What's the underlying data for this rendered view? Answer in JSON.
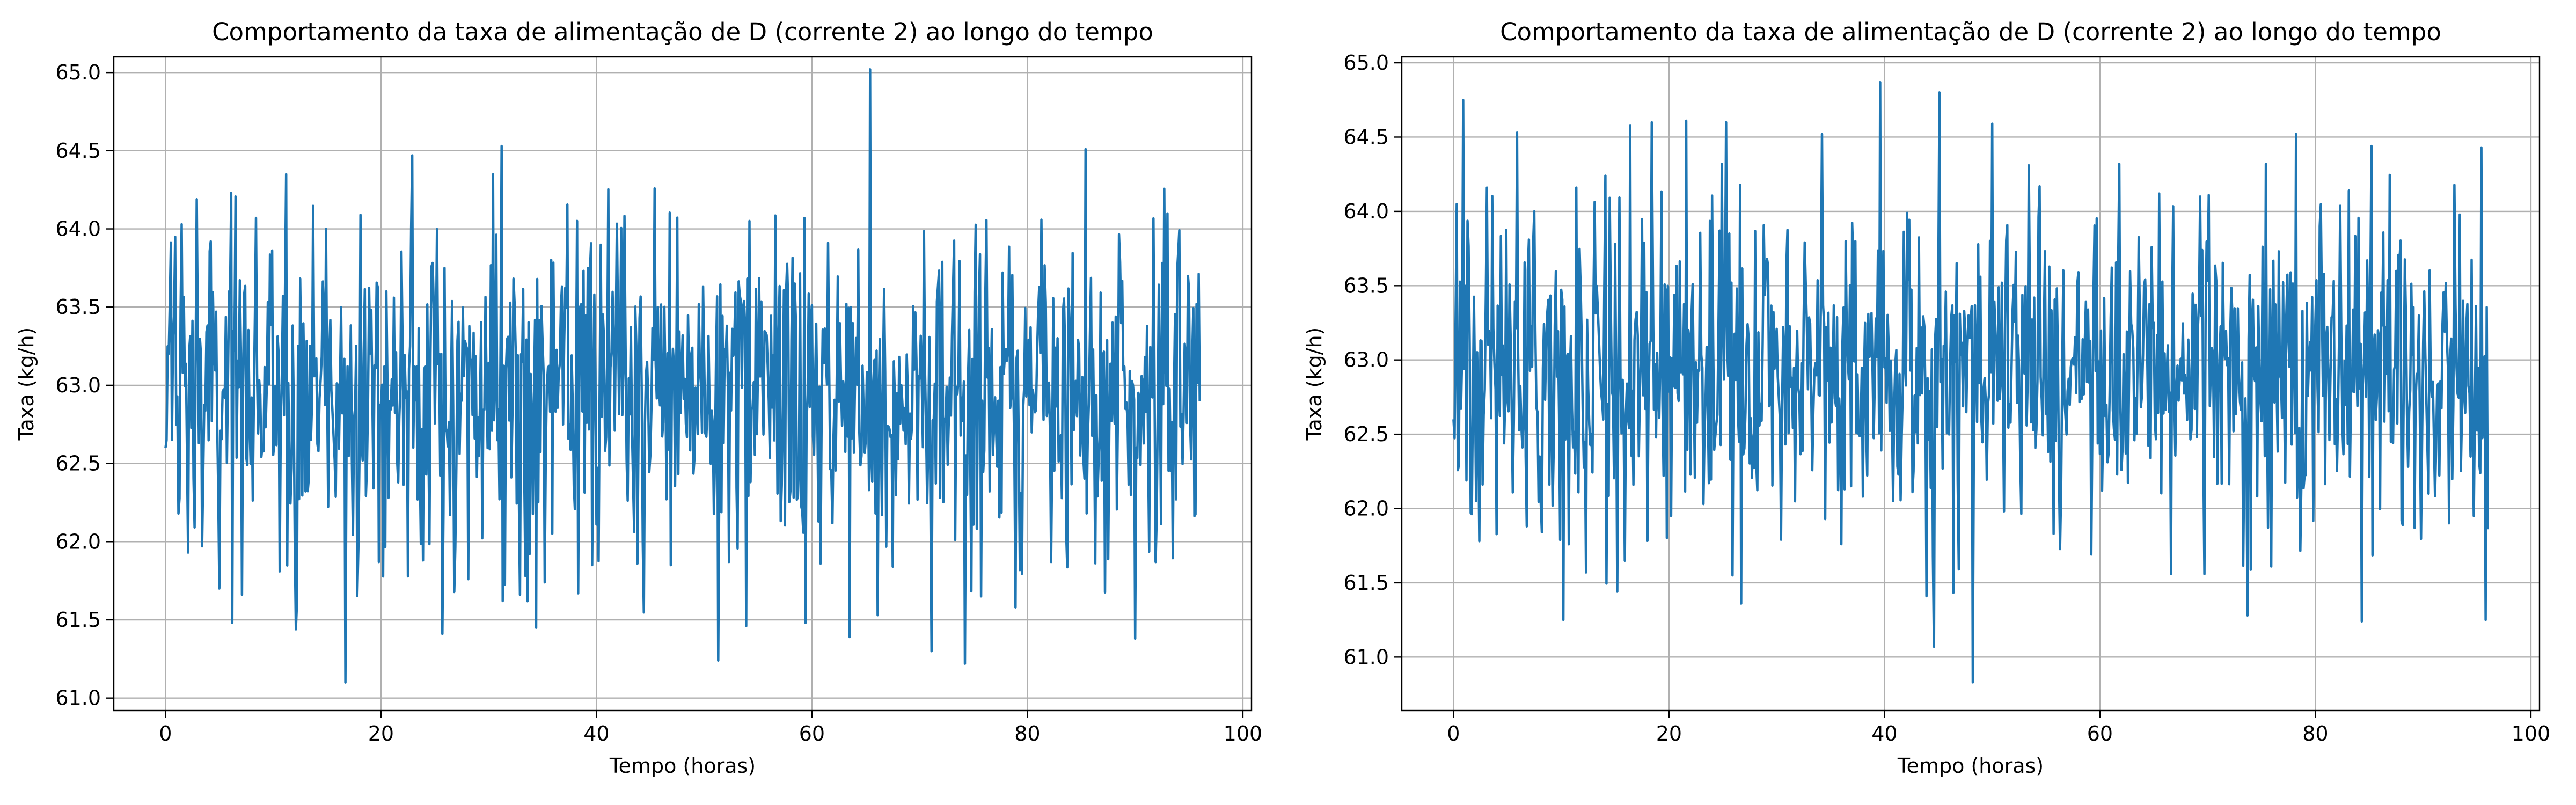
{
  "chart_data": [
    {
      "type": "line",
      "title": "Comportamento da taxa de alimentação de D (corrente 2) ao longo do tempo",
      "xlabel": "Tempo (horas)",
      "ylabel": "Taxa (kg/h)",
      "xlim": [
        -4.8,
        100.8
      ],
      "ylim": [
        60.92,
        65.1
      ],
      "xticks": [
        0,
        20,
        40,
        60,
        80,
        100
      ],
      "yticks": [
        61.0,
        61.5,
        62.0,
        62.5,
        63.0,
        63.5,
        64.0,
        64.5,
        65.0
      ],
      "grid": true,
      "color": "#1f77b4",
      "series": [
        {
          "name": "",
          "sample_step_hours": 0.1,
          "n_points": 961,
          "mean": 62.98,
          "std": 0.5,
          "min": 61.1,
          "max": 65.02,
          "points": [
            [
              0,
              62.6
            ],
            [
              0.2,
              63.25
            ],
            [
              0.4,
              63.52
            ],
            [
              0.6,
              62.65
            ],
            [
              0.9,
              63.95
            ],
            [
              1.2,
              62.18
            ],
            [
              1.5,
              64.03
            ],
            [
              2.1,
              61.93
            ],
            [
              2.9,
              64.19
            ],
            [
              3.4,
              61.97
            ],
            [
              4.2,
              63.92
            ],
            [
              5,
              61.7
            ],
            [
              6.1,
              64.23
            ],
            [
              6.2,
              61.48
            ],
            [
              7.1,
              61.66
            ],
            [
              8.4,
              64.07
            ],
            [
              10.6,
              61.81
            ],
            [
              11.2,
              64.35
            ],
            [
              12.1,
              61.44
            ],
            [
              14.9,
              64.0
            ],
            [
              16.7,
              61.1
            ],
            [
              18.1,
              64.09
            ],
            [
              19.8,
              61.87
            ],
            [
              22.9,
              64.47
            ],
            [
              23.9,
              61.88
            ],
            [
              25.7,
              61.41
            ],
            [
              28.1,
              61.76
            ],
            [
              31.2,
              64.53
            ],
            [
              32.9,
              61.66
            ],
            [
              35.2,
              61.74
            ],
            [
              38.3,
              61.67
            ],
            [
              39.6,
              61.85
            ],
            [
              43.8,
              61.86
            ],
            [
              46.9,
              61.85
            ],
            [
              51.3,
              61.24
            ],
            [
              52.3,
              61.87
            ],
            [
              53.9,
              61.46
            ],
            [
              59.4,
              61.48
            ],
            [
              60.8,
              61.86
            ],
            [
              63.5,
              61.39
            ],
            [
              65.4,
              65.02
            ],
            [
              66.1,
              61.53
            ],
            [
              67.5,
              61.84
            ],
            [
              71.1,
              61.3
            ],
            [
              74.2,
              61.22
            ],
            [
              75.7,
              61.65
            ],
            [
              78.9,
              61.58
            ],
            [
              82.2,
              61.87
            ],
            [
              85.4,
              64.51
            ],
            [
              90,
              61.38
            ],
            [
              91.9,
              61.87
            ],
            [
              95.7,
              63.52
            ],
            [
              96,
              62.9
            ]
          ]
        }
      ]
    },
    {
      "type": "line",
      "title": "Comportamento da taxa de alimentação de D (corrente 2) ao longo do tempo",
      "xlabel": "Tempo (horas)",
      "ylabel": "Taxa (kg/h)",
      "xlim": [
        -4.8,
        100.8
      ],
      "ylim": [
        60.64,
        65.04
      ],
      "xticks": [
        0,
        20,
        40,
        60,
        80,
        100
      ],
      "yticks": [
        61.0,
        61.5,
        62.0,
        62.5,
        63.0,
        63.5,
        64.0,
        64.5,
        65.0
      ],
      "grid": true,
      "color": "#1f77b4",
      "series": [
        {
          "name": "",
          "sample_step_hours": 0.1,
          "n_points": 961,
          "mean": 62.95,
          "std": 0.5,
          "min": 60.83,
          "max": 64.87,
          "points": [
            [
              0,
              62.6
            ],
            [
              0.3,
              64.05
            ],
            [
              0.9,
              64.75
            ],
            [
              1.6,
              61.97
            ],
            [
              2.4,
              61.78
            ],
            [
              3.1,
              64.16
            ],
            [
              4.5,
              62.9
            ],
            [
              5.9,
              64.53
            ],
            [
              6.8,
              61.88
            ],
            [
              7.5,
              64.0
            ],
            [
              8.2,
              61.84
            ],
            [
              9.2,
              62.02
            ],
            [
              10.2,
              61.25
            ],
            [
              11.4,
              64.16
            ],
            [
              12.3,
              61.57
            ],
            [
              14.1,
              64.24
            ],
            [
              15.2,
              61.44
            ],
            [
              16.4,
              64.58
            ],
            [
              18.4,
              64.6
            ],
            [
              20.2,
              61.95
            ],
            [
              21.6,
              64.61
            ],
            [
              23.2,
              62.03
            ],
            [
              25.3,
              64.6
            ],
            [
              25.9,
              61.55
            ],
            [
              26.7,
              61.36
            ],
            [
              30.4,
              61.79
            ],
            [
              34.2,
              64.52
            ],
            [
              36,
              61.76
            ],
            [
              38,
              62.08
            ],
            [
              39.6,
              64.87
            ],
            [
              43.9,
              61.41
            ],
            [
              44.6,
              61.07
            ],
            [
              45.1,
              64.8
            ],
            [
              46.9,
              61.59
            ],
            [
              48.2,
              60.83
            ],
            [
              50,
              64.59
            ],
            [
              53.4,
              64.31
            ],
            [
              55.7,
              61.83
            ],
            [
              59.2,
              61.69
            ],
            [
              61.8,
              64.32
            ],
            [
              65.5,
              64.12
            ],
            [
              66.6,
              61.56
            ],
            [
              70.1,
              64.11
            ],
            [
              73.7,
              61.28
            ],
            [
              75.9,
              61.61
            ],
            [
              78.2,
              64.52
            ],
            [
              80.4,
              63.9
            ],
            [
              83.1,
              64.14
            ],
            [
              84.3,
              61.24
            ],
            [
              85.2,
              64.44
            ],
            [
              89.2,
              61.87
            ],
            [
              92.4,
              61.9
            ],
            [
              94.7,
              61.95
            ],
            [
              95.4,
              64.43
            ],
            [
              95.8,
              61.25
            ],
            [
              96,
              61.86
            ]
          ]
        }
      ]
    }
  ]
}
